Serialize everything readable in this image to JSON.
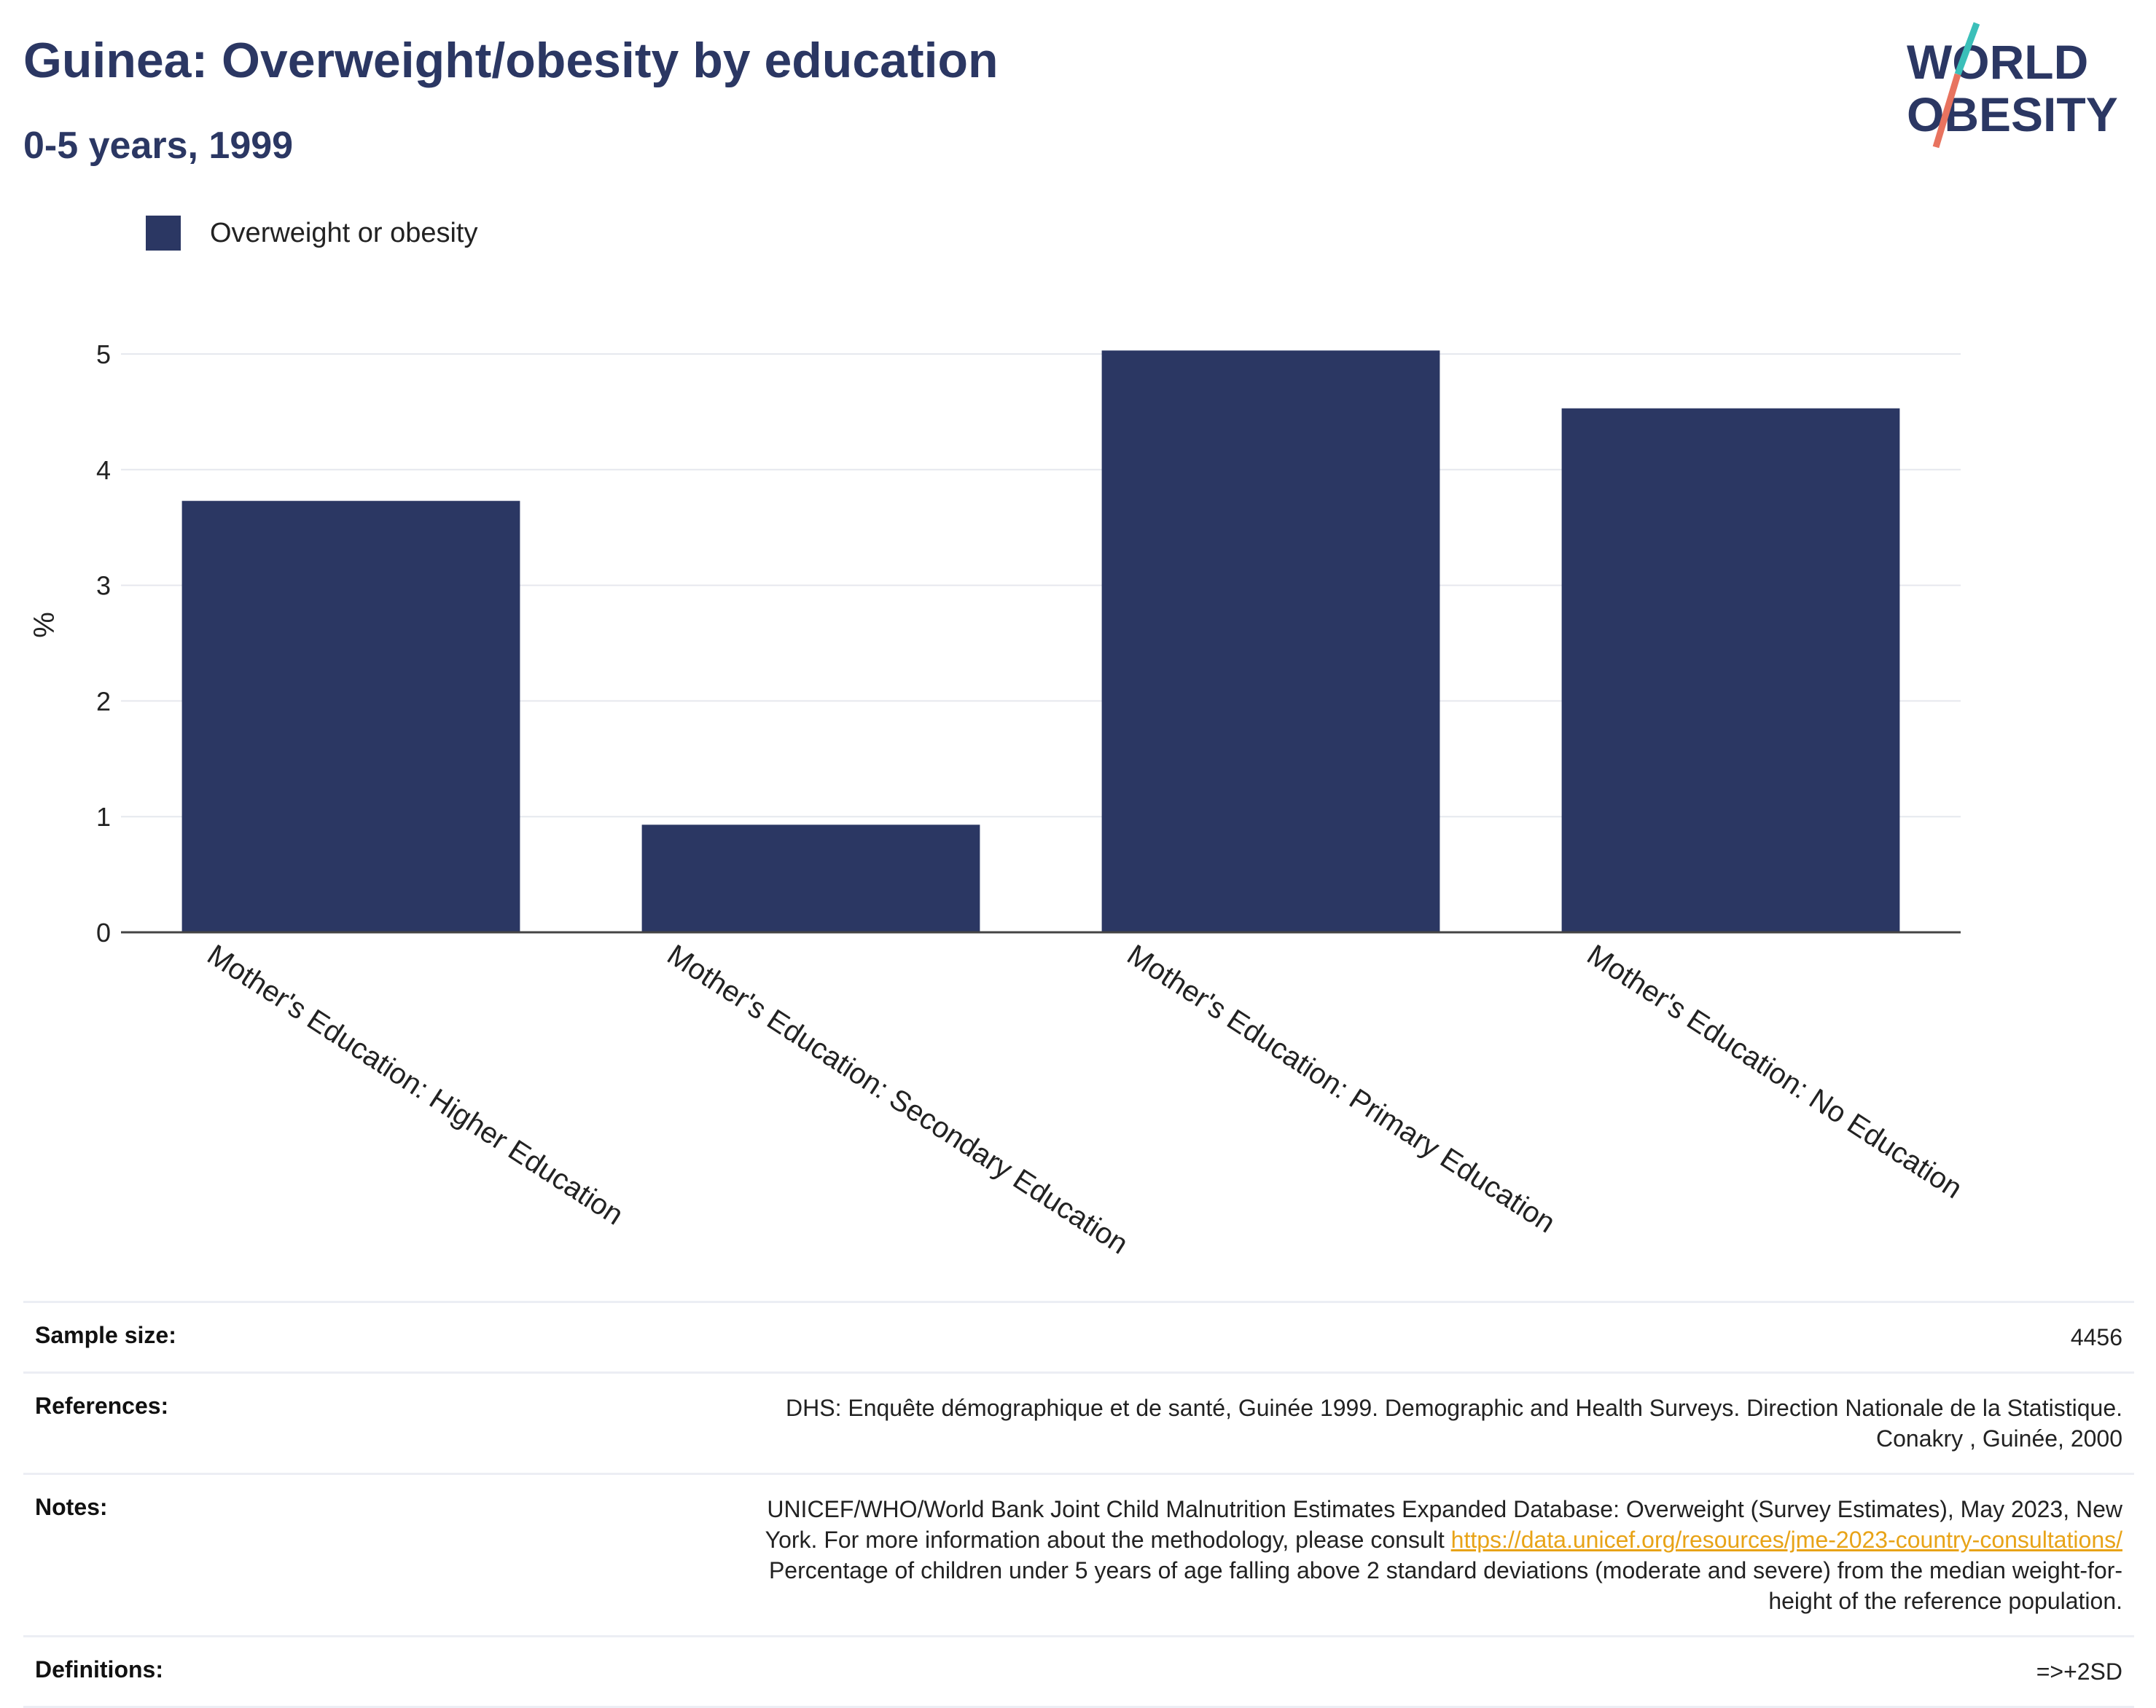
{
  "header": {
    "title": "Guinea: Overweight/obesity by education",
    "subtitle": "0-5 years, 1999"
  },
  "logo": {
    "line1": "WORLD",
    "line2": "OBESITY",
    "accent_teal": "#3bbfb9",
    "accent_coral": "#e8735f",
    "text_color": "#2b3763"
  },
  "legend": {
    "label": "Overweight or obesity",
    "color": "#2b3763"
  },
  "chart_data": {
    "type": "bar",
    "categories": [
      "Mother's Education: Higher Education",
      "Mother's Education: Secondary Education",
      "Mother's Education: Primary Education",
      "Mother's Education: No Education"
    ],
    "series": [
      {
        "name": "Overweight or obesity",
        "values": [
          3.73,
          0.93,
          5.03,
          4.53
        ],
        "color": "#2b3763"
      }
    ],
    "ylabel": "%",
    "ylim": [
      0,
      5
    ],
    "yticks": [
      0,
      1,
      2,
      3,
      4,
      5
    ],
    "grid": true,
    "legend_position": "top-left"
  },
  "footer": {
    "sample_size": {
      "label": "Sample size:",
      "value": "4456"
    },
    "references": {
      "label": "References:",
      "line1": "DHS: Enquête démographique et de santé, Guinée 1999. Demographic and Health Surveys. Direction Nationale de la Statistique.",
      "line2": "Conakry , Guinée, 2000"
    },
    "notes": {
      "label": "Notes:",
      "line1": "UNICEF/WHO/World Bank Joint Child Malnutrition Estimates Expanded Database: Overweight (Survey Estimates), May 2023, New",
      "line2_text": "York. For more information about the methodology, please consult ",
      "link": "https://data.unicef.org/resources/jme-2023-country-consultations/",
      "line3": "Percentage of children under 5 years of age falling above 2 standard deviations (moderate and severe) from the median weight-for-",
      "line4": "height of the reference population."
    },
    "definitions": {
      "label": "Definitions:",
      "value": "=>+2SD"
    }
  }
}
